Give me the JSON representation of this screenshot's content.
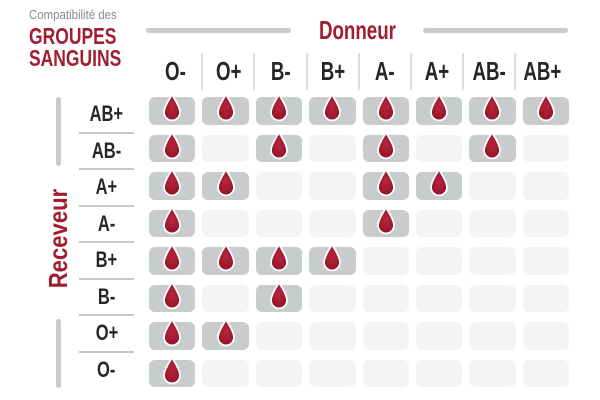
{
  "title": {
    "eyebrow": "Compatibilité des",
    "main_line1": "GROUPES",
    "main_line2": "SANGUINS"
  },
  "axes": {
    "donor_label": "Donneur",
    "receiver_label": "Receveur"
  },
  "chart_data": {
    "type": "heatmap",
    "title": "Compatibilité des GROUPES SANGUINS",
    "x_axis_label": "Donneur",
    "y_axis_label": "Receveur",
    "columns": [
      "O-",
      "O+",
      "B-",
      "B+",
      "A-",
      "A+",
      "AB-",
      "AB+"
    ],
    "rows": [
      "AB+",
      "AB-",
      "A+",
      "A-",
      "B+",
      "B-",
      "O+",
      "O-"
    ],
    "values": [
      [
        1,
        1,
        1,
        1,
        1,
        1,
        1,
        1
      ],
      [
        1,
        0,
        1,
        0,
        1,
        0,
        1,
        0
      ],
      [
        1,
        1,
        0,
        0,
        1,
        1,
        0,
        0
      ],
      [
        1,
        0,
        0,
        0,
        1,
        0,
        0,
        0
      ],
      [
        1,
        1,
        1,
        1,
        0,
        0,
        0,
        0
      ],
      [
        1,
        0,
        1,
        0,
        0,
        0,
        0,
        0
      ],
      [
        1,
        1,
        0,
        0,
        0,
        0,
        0,
        0
      ],
      [
        1,
        0,
        0,
        0,
        0,
        0,
        0,
        0
      ]
    ],
    "legend": "blood-drop icon marks a compatible donor/receiver pair",
    "grid": "rounded cells, filled gray when compatible, pale gray when not"
  },
  "colors": {
    "accent_red": "#a11d30",
    "eyebrow_gray": "#8a8a8a",
    "header_text": "#262626",
    "axis_bar_gray": "#c8cbcb",
    "filled_cell": "#c9cccc",
    "empty_cell": "#f4f4f5",
    "drop_fill": "#a01b32",
    "drop_stroke": "#ffffff"
  },
  "icons": {
    "compatible_marker": "blood-drop-icon"
  }
}
